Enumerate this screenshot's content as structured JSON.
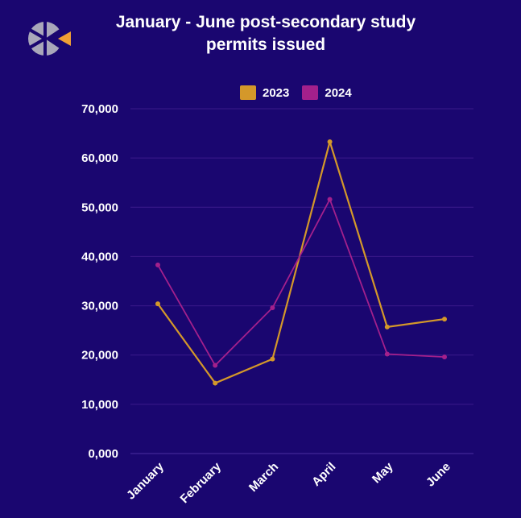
{
  "chart_data": {
    "type": "line",
    "title": "January - June post-secondary study permits issued",
    "categories": [
      "January",
      "February",
      "March",
      "April",
      "May",
      "June"
    ],
    "series": [
      {
        "name": "2023",
        "color": "#d4982a",
        "values": [
          30400,
          14300,
          19200,
          63300,
          25700,
          27300
        ]
      },
      {
        "name": "2024",
        "color": "#a3208c",
        "values": [
          38300,
          17900,
          29600,
          51600,
          20200,
          19600
        ]
      }
    ],
    "yticks": [
      "0,000",
      "10,000",
      "20,000",
      "30,000",
      "40,000",
      "50,000",
      "60,000",
      "70,000"
    ],
    "ylim": [
      0,
      70000
    ],
    "xlabel": "",
    "ylabel": "",
    "grid": true,
    "legend_position": "top"
  },
  "colors": {
    "background": "#1a0670",
    "gridline": "#3a1a8a",
    "logo_gray": "#a9a7ba",
    "logo_orange": "#f0a035"
  },
  "logo": {
    "icon": "logo-icon"
  }
}
